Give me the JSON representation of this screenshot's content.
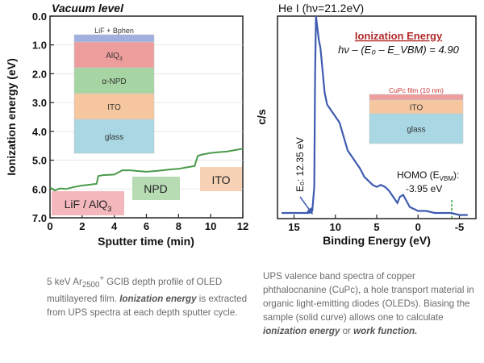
{
  "chart_data": [
    {
      "type": "line",
      "title": "Vacuum level",
      "xlabel": "Sputter time (min)",
      "ylabel": "Ionization energy (eV)",
      "xlim": [
        0,
        12
      ],
      "ylim": [
        0.0,
        7.0
      ],
      "y_inverted": true,
      "xticks": [
        "0",
        "2",
        "4",
        "6",
        "8",
        "10",
        "12"
      ],
      "yticks": [
        "0.0",
        "1.0",
        "2.0",
        "3.0",
        "4.0",
        "5.0",
        "6.0",
        "7.0"
      ],
      "series_color": "#4a9a4a",
      "points": [
        [
          0,
          5.95
        ],
        [
          0.3,
          6.05
        ],
        [
          0.6,
          5.98
        ],
        [
          1.0,
          6.0
        ],
        [
          1.5,
          5.93
        ],
        [
          2.0,
          5.88
        ],
        [
          2.5,
          5.85
        ],
        [
          2.9,
          5.82
        ],
        [
          3.0,
          5.55
        ],
        [
          3.3,
          5.52
        ],
        [
          4.0,
          5.5
        ],
        [
          4.5,
          5.35
        ],
        [
          5.0,
          5.35
        ],
        [
          5.5,
          5.38
        ],
        [
          6.0,
          5.4
        ],
        [
          6.5,
          5.38
        ],
        [
          7.0,
          5.35
        ],
        [
          7.5,
          5.32
        ],
        [
          8.0,
          5.3
        ],
        [
          8.5,
          5.25
        ],
        [
          9.0,
          5.2
        ],
        [
          9.2,
          4.85
        ],
        [
          9.5,
          4.8
        ],
        [
          10.0,
          4.75
        ],
        [
          10.5,
          4.72
        ],
        [
          11.0,
          4.7
        ],
        [
          11.5,
          4.65
        ],
        [
          12.0,
          4.6
        ]
      ],
      "layer_labels": [
        {
          "text": "LiF / AlQ",
          "sub": "3",
          "color": "#f4b8bc"
        },
        {
          "text": "NPD",
          "color": "#b7dcb4"
        },
        {
          "text": "ITO",
          "color": "#f8d2b6"
        }
      ],
      "stack": [
        {
          "text": "LiF + Bphen",
          "sub": "",
          "color": "#9fb0e0"
        },
        {
          "text": "AlQ",
          "sub": "3",
          "color": "#ee9d9d"
        },
        {
          "text": "α-NPD",
          "sub": "",
          "color": "#a7d4a3"
        },
        {
          "text": "ITO",
          "sub": "",
          "color": "#f6c79f"
        },
        {
          "text": "glass",
          "sub": "",
          "color": "#a9d8e4"
        }
      ]
    },
    {
      "type": "line",
      "title": "He I (hν=21.2eV)",
      "xlabel": "Binding Energy (eV)",
      "ylabel": "c/s",
      "xlim": [
        17,
        -7
      ],
      "xticks": [
        "15",
        "10",
        "5",
        "0",
        "-5"
      ],
      "series_color": "#3f5bb0",
      "points": [
        [
          16.5,
          0.02
        ],
        [
          15,
          0.02
        ],
        [
          14,
          0.02
        ],
        [
          13.2,
          0.02
        ],
        [
          12.8,
          0.03
        ],
        [
          12.55,
          0.15
        ],
        [
          12.45,
          0.7
        ],
        [
          12.35,
          1.0
        ],
        [
          12.2,
          0.95
        ],
        [
          12.0,
          0.88
        ],
        [
          11.8,
          0.84
        ],
        [
          11.6,
          0.75
        ],
        [
          11.3,
          0.62
        ],
        [
          11.0,
          0.56
        ],
        [
          10.5,
          0.53
        ],
        [
          10.0,
          0.5
        ],
        [
          9.5,
          0.47
        ],
        [
          9.0,
          0.4
        ],
        [
          8.5,
          0.33
        ],
        [
          8.0,
          0.3
        ],
        [
          7.5,
          0.27
        ],
        [
          7.0,
          0.24
        ],
        [
          6.5,
          0.2
        ],
        [
          6.0,
          0.18
        ],
        [
          5.5,
          0.16
        ],
        [
          5.0,
          0.15
        ],
        [
          4.5,
          0.16
        ],
        [
          4.0,
          0.15
        ],
        [
          3.5,
          0.13
        ],
        [
          3.0,
          0.1
        ],
        [
          2.5,
          0.07
        ],
        [
          2.2,
          0.1
        ],
        [
          1.8,
          0.11
        ],
        [
          1.4,
          0.08
        ],
        [
          1.0,
          0.05
        ],
        [
          0.5,
          0.04
        ],
        [
          0.0,
          0.03
        ],
        [
          -1.0,
          0.03
        ],
        [
          -2.0,
          0.02
        ],
        [
          -3.0,
          0.02
        ],
        [
          -4.0,
          0.02
        ],
        [
          -5.0,
          0.01
        ],
        [
          -6.0,
          0.01
        ]
      ],
      "annotations": {
        "heading": "Ionization Energy",
        "formula": "hν – (E₀ – E_VBM) = 4.90",
        "e0_label": "E₀: 12.35 eV",
        "homo_label": "HOMO (E",
        "homo_sub": "VBM",
        "homo_suffix": "):",
        "homo_value": "-3.95 eV"
      },
      "stack": [
        {
          "text": "CuPc film (10 nm)",
          "color": "#ee9d9d"
        },
        {
          "text": "ITO",
          "color": "#f6c79f"
        },
        {
          "text": "glass",
          "color": "#a9d8e4"
        }
      ]
    }
  ],
  "captions": {
    "left": {
      "p1": "5 keV Ar",
      "sub": "2500",
      "sup": "+",
      "p2": " GCIB depth profile of OLED multilayered film.  ",
      "b1": "Ionization energy",
      "p3": " is extracted from UPS spectra at each depth sputter cycle."
    },
    "right": {
      "p1": "UPS valence band spectra of copper phthalocnanine (CuPc), a hole transport material in organic light-emitting diodes (OLEDs).  Biasing the sample (solid curve) allows one to calculate ",
      "b1": "ionization energy",
      "p2": " or ",
      "b2": "work function."
    }
  }
}
